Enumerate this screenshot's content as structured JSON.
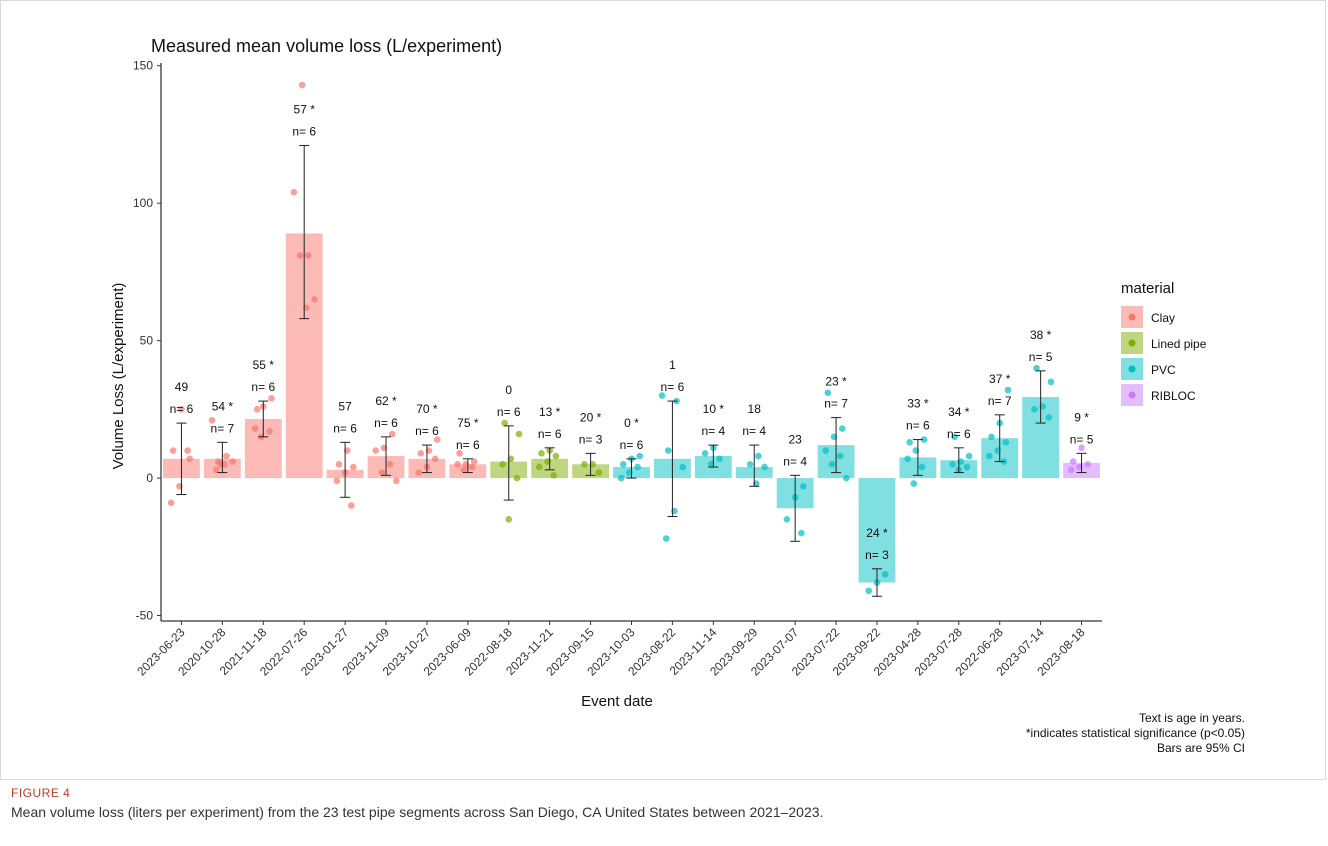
{
  "figure": {
    "label": "FIGURE 4",
    "caption": "Mean volume loss (liters per experiment) from the 23 test pipe segments across San Diego, CA United States between 2021–2023."
  },
  "chart_data": {
    "type": "bar",
    "title": "Measured mean volume loss (L/experiment)",
    "xlabel": "Event date",
    "ylabel": "Volume Loss (L/experiment)",
    "ylim": [
      -52,
      151
    ],
    "yticks": [
      -50,
      0,
      50,
      100,
      150
    ],
    "grid": false,
    "legend": {
      "title": "material",
      "position": "right",
      "items": [
        {
          "name": "Clay",
          "color": "#F8766D"
        },
        {
          "name": "Lined pipe",
          "color": "#7CAE00"
        },
        {
          "name": "PVC",
          "color": "#00BFC4"
        },
        {
          "name": "RIBLOC",
          "color": "#C77CFF"
        }
      ]
    },
    "notes": [
      "Text is age in years.",
      "*indicates statistical significance (p<0.05)",
      "Bars are 95% CI"
    ],
    "categories": [
      "2023-06-23",
      "2020-10-28",
      "2021-11-18",
      "2022-07-26",
      "2023-01-27",
      "2023-11-09",
      "2023-10-27",
      "2023-06-09",
      "2022-08-18",
      "2023-11-21",
      "2023-09-15",
      "2023-10-03",
      "2023-08-22",
      "2023-11-14",
      "2023-09-29",
      "2023-07-07",
      "2023-07-22",
      "2023-09-22",
      "2023-04-28",
      "2023-07-28",
      "2022-06-28",
      "2023-07-14",
      "2023-08-18"
    ],
    "bars": [
      {
        "date": "2023-06-23",
        "material": "Clay",
        "mean": 7,
        "ci": [
          -6,
          20
        ],
        "label": "49",
        "n": "n= 6",
        "points": [
          -9,
          -3,
          10,
          10,
          25,
          7
        ]
      },
      {
        "date": "2020-10-28",
        "material": "Clay",
        "mean": 7,
        "ci": [
          2,
          13
        ],
        "label": "54 *",
        "n": "n= 7",
        "points": [
          3,
          5,
          6,
          6,
          8,
          21,
          5
        ]
      },
      {
        "date": "2021-11-18",
        "material": "Clay",
        "mean": 21.5,
        "ci": [
          15,
          28
        ],
        "label": "55 *",
        "n": "n= 6",
        "points": [
          15,
          17,
          18,
          26,
          29,
          25
        ]
      },
      {
        "date": "2022-07-26",
        "material": "Clay",
        "mean": 89,
        "ci": [
          58,
          121
        ],
        "label": "57 *",
        "n": "n= 6",
        "points": [
          62,
          65,
          81,
          81,
          104,
          143
        ]
      },
      {
        "date": "2023-01-27",
        "material": "Clay",
        "mean": 3,
        "ci": [
          -7,
          13
        ],
        "label": "57",
        "n": "n= 6",
        "points": [
          -10,
          -1,
          2,
          4,
          5,
          10
        ]
      },
      {
        "date": "2023-11-09",
        "material": "Clay",
        "mean": 8,
        "ci": [
          1,
          15
        ],
        "label": "62 *",
        "n": "n= 6",
        "points": [
          -1,
          2,
          5,
          10,
          11,
          16
        ]
      },
      {
        "date": "2023-10-27",
        "material": "Clay",
        "mean": 7,
        "ci": [
          2,
          12
        ],
        "label": "70 *",
        "n": "n= 6",
        "points": [
          2,
          4,
          7,
          9,
          10,
          14
        ]
      },
      {
        "date": "2023-06-09",
        "material": "Clay",
        "mean": 5,
        "ci": [
          2,
          7
        ],
        "label": "75 *",
        "n": "n= 6",
        "points": [
          3,
          4,
          5,
          5,
          6,
          9
        ]
      },
      {
        "date": "2022-08-18",
        "material": "Lined pipe",
        "mean": 6,
        "ci": [
          -8,
          19
        ],
        "label": "0",
        "n": "n= 6",
        "points": [
          -15,
          0,
          5,
          7,
          16,
          20
        ]
      },
      {
        "date": "2023-11-21",
        "material": "Lined pipe",
        "mean": 7,
        "ci": [
          3,
          11
        ],
        "label": "13 *",
        "n": "n= 6",
        "points": [
          1,
          4,
          6,
          8,
          9,
          10
        ]
      },
      {
        "date": "2023-09-15",
        "material": "Lined pipe",
        "mean": 5,
        "ci": [
          1,
          9
        ],
        "label": "20 *",
        "n": "n= 3",
        "points": [
          2,
          5,
          5
        ]
      },
      {
        "date": "2023-10-03",
        "material": "PVC",
        "mean": 4,
        "ci": [
          0,
          7
        ],
        "label": "0 *",
        "n": "n= 6",
        "points": [
          0,
          2,
          4,
          5,
          7,
          8
        ]
      },
      {
        "date": "2023-08-22",
        "material": "PVC",
        "mean": 7,
        "ci": [
          -14,
          28
        ],
        "label": "1",
        "n": "n= 6",
        "points": [
          -22,
          -12,
          4,
          10,
          28,
          30
        ]
      },
      {
        "date": "2023-11-14",
        "material": "PVC",
        "mean": 8,
        "ci": [
          4,
          12
        ],
        "label": "10 *",
        "n": "n= 4",
        "points": [
          5,
          7,
          9,
          11
        ]
      },
      {
        "date": "2023-09-29",
        "material": "PVC",
        "mean": 4,
        "ci": [
          -3,
          12
        ],
        "label": "18",
        "n": "n= 4",
        "points": [
          -2,
          4,
          5,
          8
        ]
      },
      {
        "date": "2023-07-07",
        "material": "PVC",
        "mean": -11,
        "ci": [
          -23,
          1
        ],
        "label": "23",
        "n": "n= 4",
        "points": [
          -20,
          -15,
          -7,
          -3
        ]
      },
      {
        "date": "2023-07-22",
        "material": "PVC",
        "mean": 12,
        "ci": [
          2,
          22
        ],
        "label": "23 *",
        "n": "n= 7",
        "points": [
          0,
          5,
          8,
          10,
          15,
          18,
          31
        ]
      },
      {
        "date": "2023-09-22",
        "material": "PVC",
        "mean": -38,
        "ci": [
          -43,
          -33
        ],
        "label": "24 *",
        "n": "n= 3",
        "points": [
          -41,
          -38,
          -35
        ]
      },
      {
        "date": "2023-04-28",
        "material": "PVC",
        "mean": 7.5,
        "ci": [
          1,
          14
        ],
        "label": "33 *",
        "n": "n= 6",
        "points": [
          -2,
          4,
          7,
          10,
          14,
          13
        ]
      },
      {
        "date": "2023-07-28",
        "material": "PVC",
        "mean": 6.5,
        "ci": [
          2,
          11
        ],
        "label": "34 *",
        "n": "n= 6",
        "points": [
          3,
          4,
          5,
          6,
          8,
          15
        ]
      },
      {
        "date": "2022-06-28",
        "material": "PVC",
        "mean": 14.5,
        "ci": [
          6,
          23
        ],
        "label": "37 *",
        "n": "n= 7",
        "points": [
          6,
          8,
          10,
          13,
          15,
          20,
          32
        ]
      },
      {
        "date": "2023-07-14",
        "material": "PVC",
        "mean": 29.5,
        "ci": [
          20,
          39
        ],
        "label": "38 *",
        "n": "n= 5",
        "points": [
          22,
          25,
          26,
          35,
          40
        ]
      },
      {
        "date": "2023-08-18",
        "material": "RIBLOC",
        "mean": 5.5,
        "ci": [
          2,
          9
        ],
        "label": "9 *",
        "n": "n= 5",
        "points": [
          3,
          4,
          5,
          6,
          11
        ]
      }
    ]
  }
}
